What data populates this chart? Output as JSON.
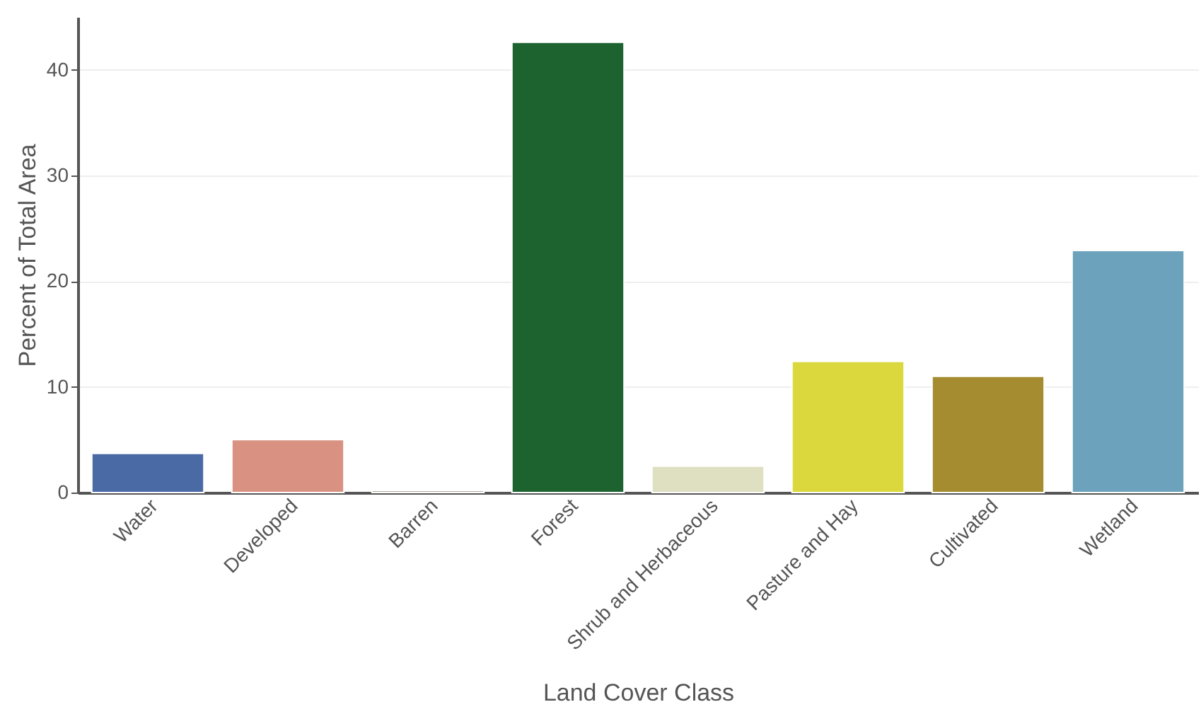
{
  "chart_data": {
    "type": "bar",
    "xlabel": "Land Cover Class",
    "ylabel": "Percent of Total Area",
    "categories": [
      "Water",
      "Developed",
      "Barren",
      "Forest",
      "Shrub and Herbaceous",
      "Pasture and Hay",
      "Cultivated",
      "Wetland"
    ],
    "values": [
      3.7,
      5.0,
      0.2,
      42.6,
      2.5,
      12.4,
      11.0,
      22.9
    ],
    "colors": [
      "#4a6aa5",
      "#d99282",
      "#b3ac9f",
      "#1c6330",
      "#dfdfc2",
      "#dbd83d",
      "#a68c30",
      "#6ca2bc"
    ],
    "ylim": [
      0,
      45
    ],
    "yticks": [
      0,
      10,
      20,
      30,
      40
    ],
    "grid": "y"
  }
}
